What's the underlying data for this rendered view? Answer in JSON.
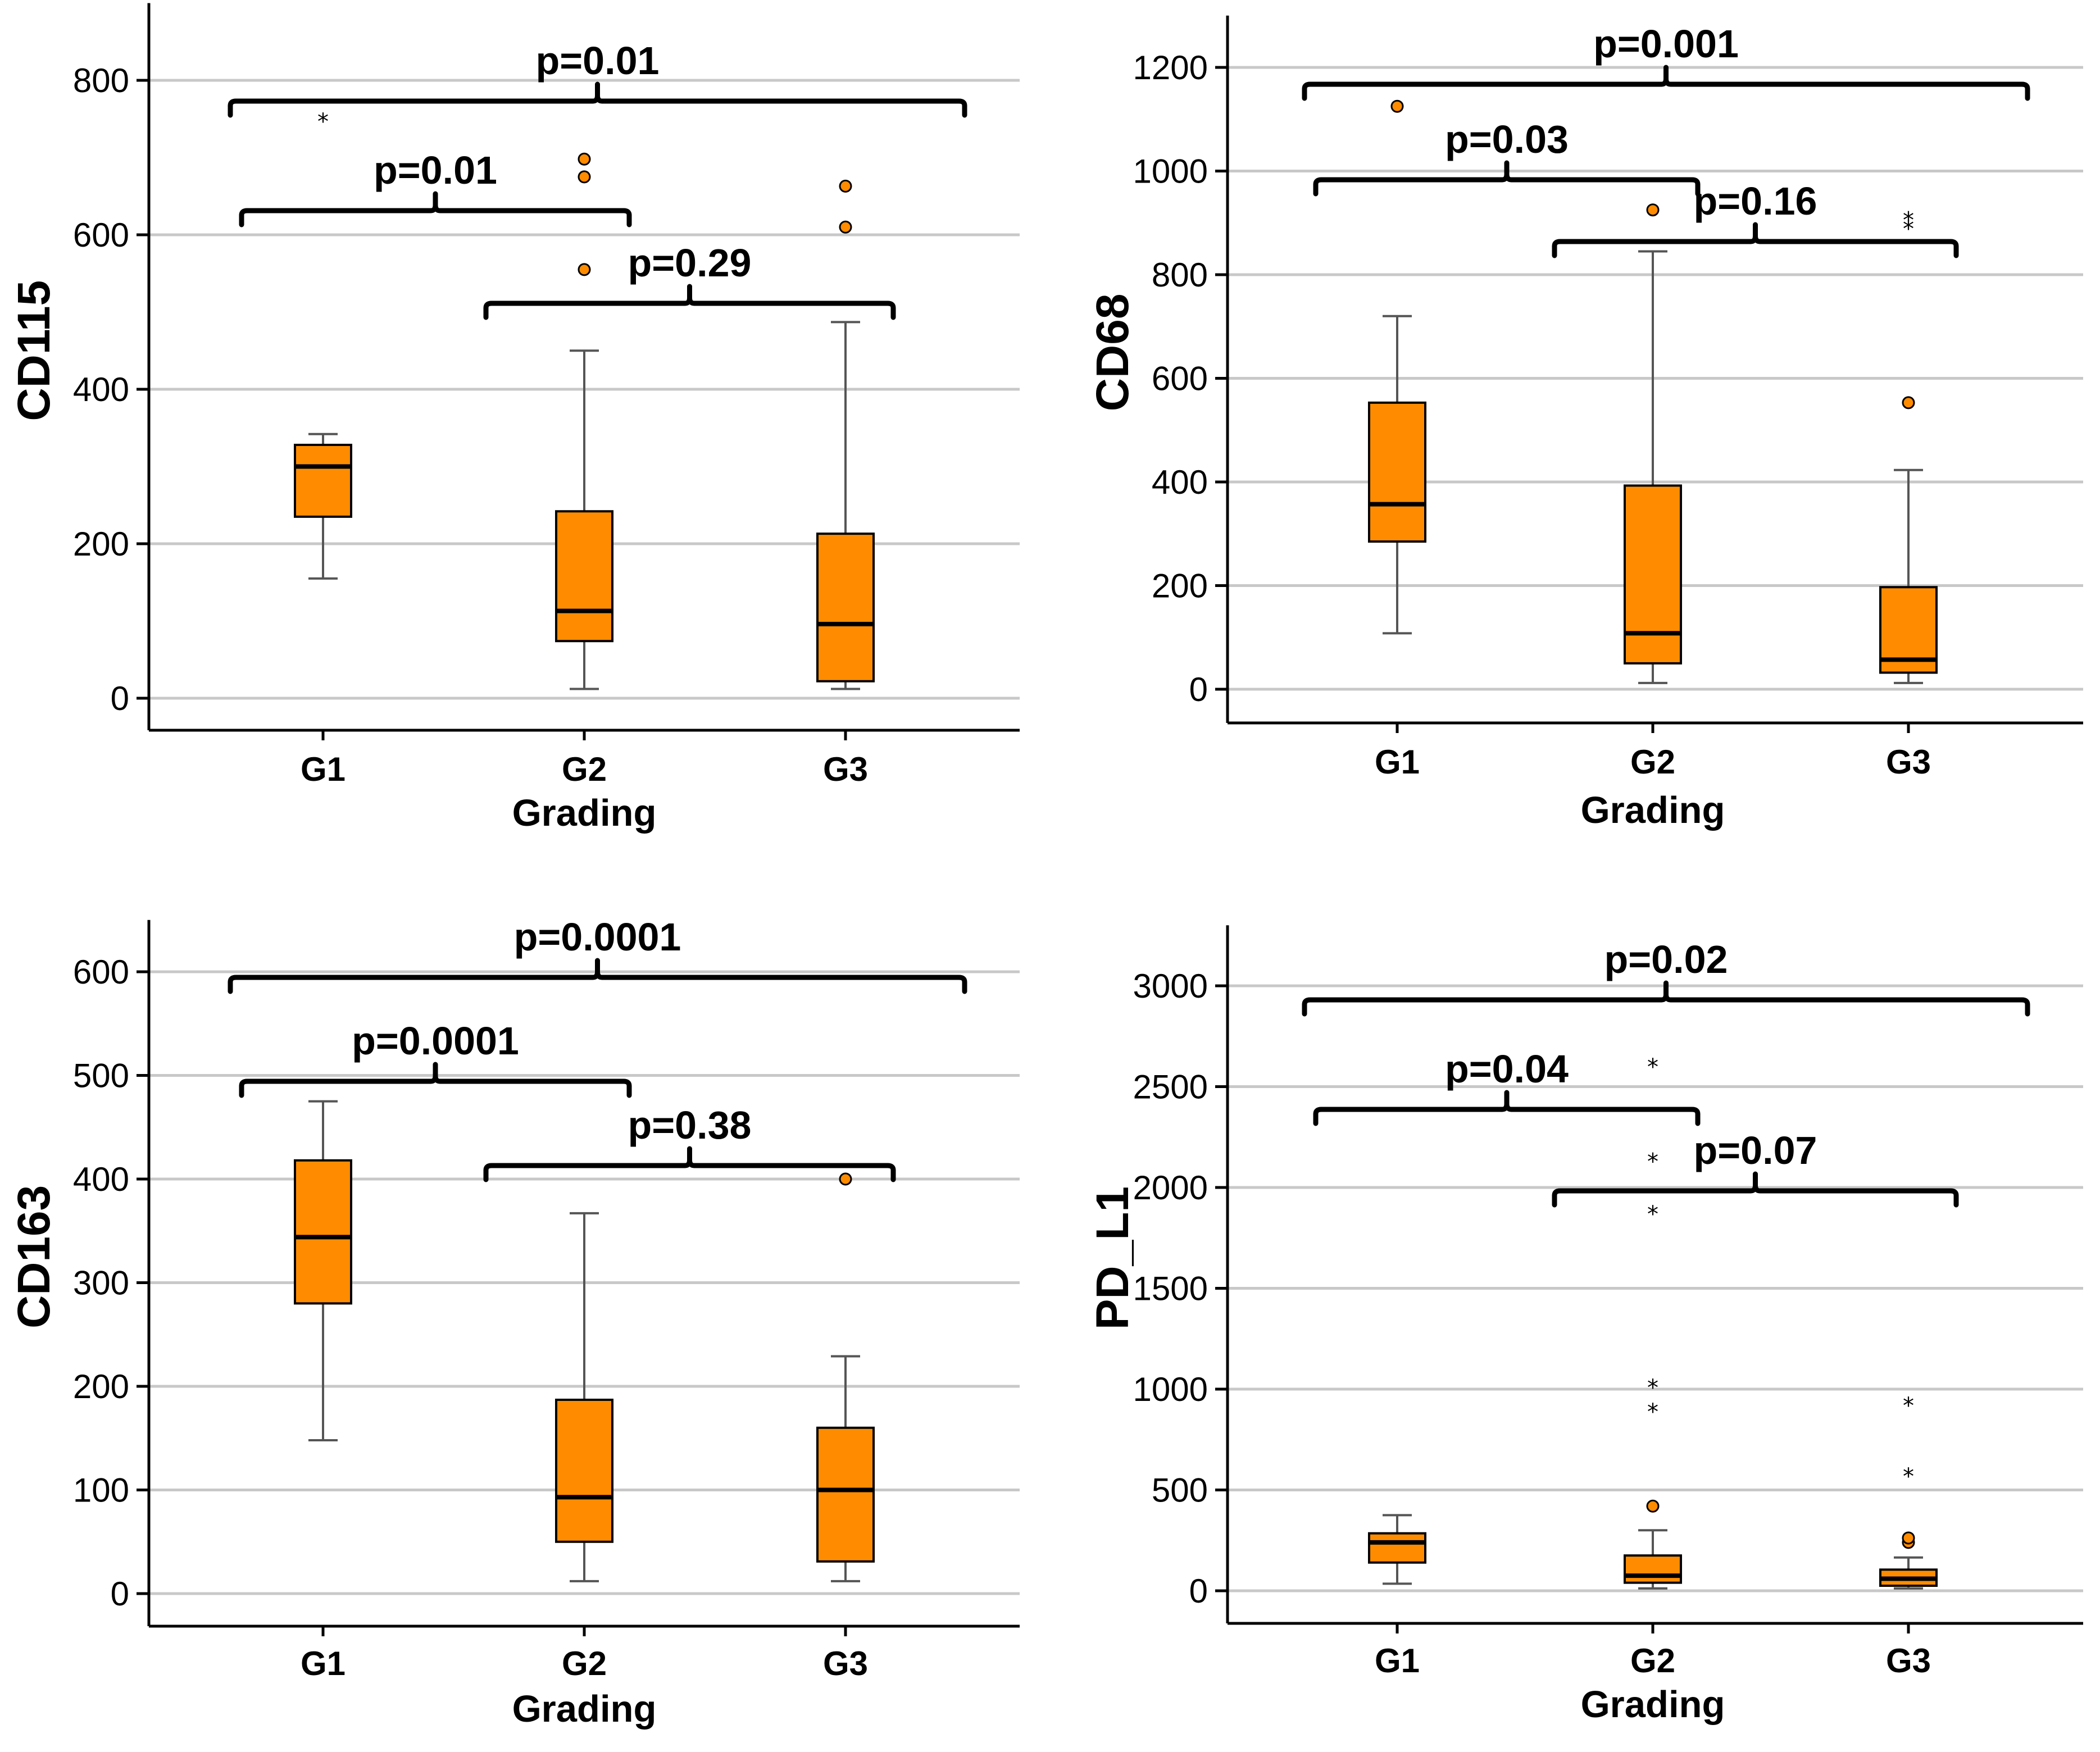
{
  "chart_data": [
    {
      "type": "box",
      "ylabel": "CD115",
      "xlabel": "Grading",
      "categories": [
        "G1",
        "G2",
        "G3"
      ],
      "ylim": [
        -45,
        900
      ],
      "yticks": [
        0,
        200,
        400,
        600,
        800
      ],
      "grid": true,
      "box_color": "#FF8C00",
      "boxes": [
        {
          "category": "G1",
          "whisker_low": 155,
          "q1": 235,
          "median": 300,
          "q3": 328,
          "whisker_high": 342,
          "outliers": [],
          "extremes": [
            750
          ]
        },
        {
          "category": "G2",
          "whisker_low": 12,
          "q1": 74,
          "median": 113,
          "q3": 242,
          "whisker_high": 450,
          "outliers": [
            555,
            675,
            698
          ],
          "extremes": []
        },
        {
          "category": "G3",
          "whisker_low": 12,
          "q1": 22,
          "median": 96,
          "q3": 213,
          "whisker_high": 487,
          "outliers": [
            610,
            663
          ],
          "extremes": []
        }
      ],
      "comparisons": [
        {
          "from": "G1",
          "to": "G3",
          "label": "p=0.01",
          "level": 3
        },
        {
          "from": "G1",
          "to": "G2",
          "label": "p=0.01",
          "level": 2
        },
        {
          "from": "G2",
          "to": "G3",
          "label": "p=0.29",
          "level": 1
        }
      ]
    },
    {
      "type": "box",
      "ylabel": "CD68",
      "xlabel": "Grading",
      "categories": [
        "G1",
        "G2",
        "G3"
      ],
      "ylim": [
        -62,
        1300
      ],
      "yticks": [
        0,
        200,
        400,
        600,
        800,
        1000,
        1200
      ],
      "grid": true,
      "box_color": "#FF8C00",
      "boxes": [
        {
          "category": "G1",
          "whisker_low": 108,
          "q1": 285,
          "median": 357,
          "q3": 553,
          "whisker_high": 720,
          "outliers": [
            1125
          ],
          "extremes": []
        },
        {
          "category": "G2",
          "whisker_low": 12,
          "q1": 50,
          "median": 108,
          "q3": 393,
          "whisker_high": 845,
          "outliers": [
            925
          ],
          "extremes": []
        },
        {
          "category": "G3",
          "whisker_low": 12,
          "q1": 32,
          "median": 57,
          "q3": 197,
          "whisker_high": 423,
          "outliers": [
            553
          ],
          "extremes": [
            893,
            910
          ]
        }
      ],
      "comparisons": [
        {
          "from": "G1",
          "to": "G3",
          "label": "p=0.001",
          "level": 3
        },
        {
          "from": "G1",
          "to": "G2",
          "label": "p=0.03",
          "level": 2
        },
        {
          "from": "G2",
          "to": "G3",
          "label": "p=0.16",
          "level": 1
        }
      ]
    },
    {
      "type": "box",
      "ylabel": "CD163",
      "xlabel": "Grading",
      "categories": [
        "G1",
        "G2",
        "G3"
      ],
      "ylim": [
        -32,
        650
      ],
      "yticks": [
        0,
        100,
        200,
        300,
        400,
        500,
        600
      ],
      "grid": true,
      "box_color": "#FF8C00",
      "boxes": [
        {
          "category": "G1",
          "whisker_low": 148,
          "q1": 280,
          "median": 344,
          "q3": 418,
          "whisker_high": 475,
          "outliers": [],
          "extremes": []
        },
        {
          "category": "G2",
          "whisker_low": 12,
          "q1": 50,
          "median": 93,
          "q3": 187,
          "whisker_high": 367,
          "outliers": [],
          "extremes": []
        },
        {
          "category": "G3",
          "whisker_low": 12,
          "q1": 31,
          "median": 100,
          "q3": 160,
          "whisker_high": 229,
          "outliers": [
            400
          ],
          "extremes": []
        }
      ],
      "comparisons": [
        {
          "from": "G1",
          "to": "G3",
          "label": "p=0.0001",
          "level": 3
        },
        {
          "from": "G1",
          "to": "G2",
          "label": "p=0.0001",
          "level": 2
        },
        {
          "from": "G2",
          "to": "G3",
          "label": "p=0.38",
          "level": 1
        }
      ]
    },
    {
      "type": "box",
      "ylabel": "PD_L1",
      "xlabel": "Grading",
      "categories": [
        "G1",
        "G2",
        "G3"
      ],
      "ylim": [
        -160,
        3300
      ],
      "yticks": [
        0,
        500,
        1000,
        1500,
        2000,
        2500,
        3000
      ],
      "grid": true,
      "box_color": "#FF8C00",
      "boxes": [
        {
          "category": "G1",
          "whisker_low": 35,
          "q1": 140,
          "median": 240,
          "q3": 285,
          "whisker_high": 375,
          "outliers": [],
          "extremes": []
        },
        {
          "category": "G2",
          "whisker_low": 12,
          "q1": 40,
          "median": 75,
          "q3": 175,
          "whisker_high": 300,
          "outliers": [
            420
          ],
          "extremes": [
            900,
            1020,
            1880,
            2140,
            2610
          ]
        },
        {
          "category": "G3",
          "whisker_low": 12,
          "q1": 25,
          "median": 60,
          "q3": 105,
          "whisker_high": 165,
          "outliers": [
            240,
            262
          ],
          "extremes": [
            580,
            930
          ]
        }
      ],
      "comparisons": [
        {
          "from": "G1",
          "to": "G3",
          "label": "p=0.02",
          "level": 3
        },
        {
          "from": "G1",
          "to": "G2",
          "label": "p=0.04",
          "level": 2
        },
        {
          "from": "G2",
          "to": "G3",
          "label": "p=0.07",
          "level": 1
        }
      ]
    }
  ]
}
